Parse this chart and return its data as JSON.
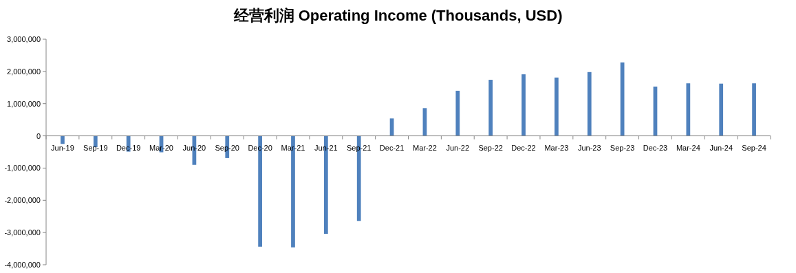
{
  "chart_data": {
    "type": "bar",
    "title": "经营利润 Operating Income (Thousands, USD)",
    "categories": [
      "Jun-19",
      "Sep-19",
      "Dec-19",
      "Mar-20",
      "Jun-20",
      "Sep-20",
      "Dec-20",
      "Mar-21",
      "Jun-21",
      "Sep-21",
      "Dec-21",
      "Mar-22",
      "Jun-22",
      "Sep-22",
      "Dec-22",
      "Mar-23",
      "Jun-23",
      "Sep-23",
      "Dec-23",
      "Mar-24",
      "Jun-24",
      "Sep-24"
    ],
    "values": [
      -250000,
      -350000,
      -490000,
      -510000,
      -900000,
      -690000,
      -3440000,
      -3460000,
      -3040000,
      -2640000,
      540000,
      860000,
      1400000,
      1740000,
      1910000,
      1810000,
      1980000,
      2280000,
      1530000,
      1630000,
      1620000,
      1630000
    ],
    "color": "#4f81bd",
    "ylim": [
      -4000000,
      3000000
    ],
    "yticks": [
      {
        "value": -4000000,
        "label": "-4,000,000"
      },
      {
        "value": -3000000,
        "label": "-3,000,000"
      },
      {
        "value": -2000000,
        "label": "-2,000,000"
      },
      {
        "value": -1000000,
        "label": "-1,000,000"
      },
      {
        "value": 0,
        "label": "0"
      },
      {
        "value": 1000000,
        "label": "1,000,000"
      },
      {
        "value": 2000000,
        "label": "2,000,000"
      },
      {
        "value": 3000000,
        "label": "3,000,000"
      }
    ],
    "grid": false,
    "legend": false
  }
}
